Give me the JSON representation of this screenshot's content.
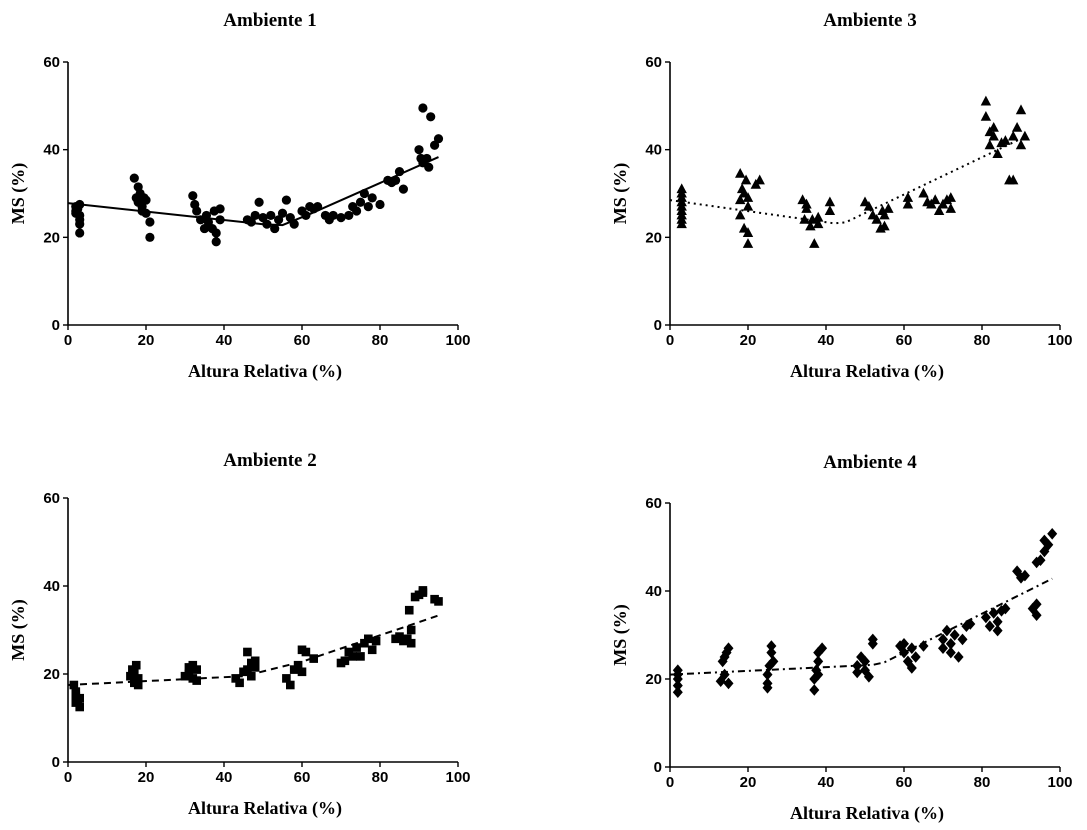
{
  "chart_data": [
    {
      "type": "scatter",
      "title": "Ambiente 1",
      "xlabel": "Altura Relativa (%)",
      "ylabel": "MS (%)",
      "xlim": [
        0,
        100
      ],
      "ylim": [
        0,
        60
      ],
      "xticks": [
        "0",
        "20",
        "40",
        "60",
        "80",
        "100"
      ],
      "yticks": [
        "0",
        "20",
        "40",
        "60"
      ],
      "marker": "circle",
      "line_style": "solid",
      "grid": false,
      "points": [
        [
          2,
          27
        ],
        [
          2,
          26
        ],
        [
          2,
          25.5
        ],
        [
          2.5,
          26.5
        ],
        [
          3,
          24
        ],
        [
          3,
          23
        ],
        [
          3,
          21
        ],
        [
          3,
          27.5
        ],
        [
          3,
          25
        ],
        [
          17,
          33.5
        ],
        [
          17.5,
          29
        ],
        [
          18,
          31.5
        ],
        [
          18,
          28
        ],
        [
          18.5,
          30
        ],
        [
          19,
          26
        ],
        [
          19,
          27
        ],
        [
          19.5,
          29
        ],
        [
          20,
          25.5
        ],
        [
          20,
          28.5
        ],
        [
          21,
          23.5
        ],
        [
          21,
          20
        ],
        [
          32,
          29.5
        ],
        [
          32.5,
          27.5
        ],
        [
          33,
          26
        ],
        [
          34,
          24
        ],
        [
          35,
          22
        ],
        [
          35.5,
          25
        ],
        [
          36,
          23.5
        ],
        [
          37,
          22
        ],
        [
          37.5,
          26
        ],
        [
          38,
          21
        ],
        [
          38,
          19
        ],
        [
          39,
          26.5
        ],
        [
          39,
          24
        ],
        [
          46,
          24
        ],
        [
          47,
          23.5
        ],
        [
          48,
          25
        ],
        [
          49,
          28
        ],
        [
          50,
          24.5
        ],
        [
          51,
          23
        ],
        [
          52,
          25
        ],
        [
          53,
          22
        ],
        [
          54,
          24
        ],
        [
          55,
          25.5
        ],
        [
          56,
          28.5
        ],
        [
          57,
          24.5
        ],
        [
          58,
          23
        ],
        [
          60,
          26
        ],
        [
          61,
          25
        ],
        [
          62,
          27
        ],
        [
          63,
          26.5
        ],
        [
          64,
          27
        ],
        [
          66,
          25
        ],
        [
          67,
          24
        ],
        [
          68,
          25
        ],
        [
          70,
          24.5
        ],
        [
          72,
          25
        ],
        [
          73,
          27
        ],
        [
          74,
          26
        ],
        [
          75,
          28
        ],
        [
          76,
          30
        ],
        [
          77,
          27
        ],
        [
          78,
          29
        ],
        [
          80,
          27.5
        ],
        [
          82,
          33
        ],
        [
          83,
          32.5
        ],
        [
          84,
          33
        ],
        [
          85,
          35
        ],
        [
          86,
          31
        ],
        [
          90,
          40
        ],
        [
          90.5,
          38
        ],
        [
          91,
          37
        ],
        [
          91,
          49.5
        ],
        [
          92,
          38
        ],
        [
          92.5,
          36
        ],
        [
          93,
          47.5
        ],
        [
          94,
          41
        ],
        [
          95,
          42.5
        ]
      ],
      "fit": [
        [
          0,
          27.8
        ],
        [
          50,
          23
        ],
        [
          55,
          22.8
        ],
        [
          62,
          25.3
        ],
        [
          95,
          38.3
        ]
      ]
    },
    {
      "type": "scatter",
      "title": "Ambiente 3",
      "xlabel": "Altura Relativa (%)",
      "ylabel": "MS (%)",
      "xlim": [
        0,
        100
      ],
      "ylim": [
        0,
        60
      ],
      "xticks": [
        "0",
        "20",
        "40",
        "60",
        "80",
        "100"
      ],
      "yticks": [
        "0",
        "20",
        "40",
        "60"
      ],
      "marker": "triangle",
      "line_style": "dotted",
      "grid": false,
      "points": [
        [
          3,
          23
        ],
        [
          3,
          24
        ],
        [
          3,
          25
        ],
        [
          3,
          26
        ],
        [
          3,
          27
        ],
        [
          3,
          28
        ],
        [
          3,
          29
        ],
        [
          3,
          30
        ],
        [
          3,
          31
        ],
        [
          18,
          34.5
        ],
        [
          18,
          25
        ],
        [
          18,
          28.5
        ],
        [
          18.5,
          31
        ],
        [
          19,
          22
        ],
        [
          19,
          30
        ],
        [
          19.5,
          33
        ],
        [
          20,
          21
        ],
        [
          20,
          18.5
        ],
        [
          20,
          27
        ],
        [
          20,
          29
        ],
        [
          22,
          32
        ],
        [
          23,
          33
        ],
        [
          34,
          28.5
        ],
        [
          34.5,
          24
        ],
        [
          35,
          26.5
        ],
        [
          35,
          27.5
        ],
        [
          36,
          22.5
        ],
        [
          36.5,
          24
        ],
        [
          37,
          18.5
        ],
        [
          38,
          23
        ],
        [
          38,
          24.5
        ],
        [
          41,
          28
        ],
        [
          41,
          26
        ],
        [
          50,
          28
        ],
        [
          51,
          27
        ],
        [
          52,
          25
        ],
        [
          53,
          24
        ],
        [
          54,
          22
        ],
        [
          54.5,
          26
        ],
        [
          55,
          25
        ],
        [
          55,
          22.5
        ],
        [
          56,
          26.5
        ],
        [
          61,
          29
        ],
        [
          61,
          27.5
        ],
        [
          65,
          30
        ],
        [
          66,
          28
        ],
        [
          67,
          27.5
        ],
        [
          68,
          28.5
        ],
        [
          69,
          26
        ],
        [
          70,
          27.5
        ],
        [
          71,
          28.5
        ],
        [
          72,
          26.5
        ],
        [
          72,
          29
        ],
        [
          81,
          51
        ],
        [
          81,
          47.5
        ],
        [
          82,
          44
        ],
        [
          82,
          41
        ],
        [
          83,
          43
        ],
        [
          83,
          45
        ],
        [
          84,
          39
        ],
        [
          85,
          41.5
        ],
        [
          86,
          42
        ],
        [
          87,
          33
        ],
        [
          88,
          43
        ],
        [
          88,
          33
        ],
        [
          89,
          45
        ],
        [
          90,
          49
        ],
        [
          90,
          41
        ],
        [
          91,
          43
        ]
      ],
      "fit": [
        [
          0,
          28.5
        ],
        [
          42,
          23.2
        ],
        [
          45,
          23.4
        ],
        [
          90,
          42.5
        ]
      ]
    },
    {
      "type": "scatter",
      "title": "Ambiente 2",
      "xlabel": "Altura Relativa (%)",
      "ylabel": "MS (%)",
      "xlim": [
        0,
        100
      ],
      "ylim": [
        0,
        60
      ],
      "xticks": [
        "0",
        "20",
        "40",
        "60",
        "80",
        "100"
      ],
      "yticks": [
        "0",
        "20",
        "40",
        "60"
      ],
      "marker": "square",
      "line_style": "dashed",
      "grid": false,
      "points": [
        [
          1.5,
          17.5
        ],
        [
          2,
          16
        ],
        [
          2,
          15
        ],
        [
          2,
          13.5
        ],
        [
          2.5,
          14
        ],
        [
          3,
          12.5
        ],
        [
          3,
          14.5
        ],
        [
          16,
          19.5
        ],
        [
          16.5,
          21
        ],
        [
          17,
          18
        ],
        [
          17,
          20.5
        ],
        [
          17.5,
          22
        ],
        [
          18,
          17.5
        ],
        [
          18,
          19
        ],
        [
          30,
          19.5
        ],
        [
          31,
          21.5
        ],
        [
          31,
          20
        ],
        [
          32,
          22
        ],
        [
          32,
          19
        ],
        [
          33,
          21
        ],
        [
          33,
          18.5
        ],
        [
          43,
          19
        ],
        [
          44,
          18
        ],
        [
          45,
          20.5
        ],
        [
          46,
          21
        ],
        [
          46,
          25
        ],
        [
          47,
          22.5
        ],
        [
          47,
          19.5
        ],
        [
          48,
          21.5
        ],
        [
          48,
          23
        ],
        [
          56,
          19
        ],
        [
          57,
          17.5
        ],
        [
          58,
          21
        ],
        [
          59,
          22
        ],
        [
          60,
          20.5
        ],
        [
          60,
          25.5
        ],
        [
          61,
          25
        ],
        [
          63,
          23.5
        ],
        [
          70,
          22.5
        ],
        [
          71,
          23
        ],
        [
          72,
          25
        ],
        [
          73,
          24
        ],
        [
          74,
          26
        ],
        [
          75,
          24
        ],
        [
          76,
          27
        ],
        [
          77,
          28
        ],
        [
          78,
          25.5
        ],
        [
          79,
          27.5
        ],
        [
          84,
          28
        ],
        [
          85,
          28.5
        ],
        [
          86,
          27.5
        ],
        [
          87,
          28
        ],
        [
          87.5,
          34.5
        ],
        [
          88,
          27
        ],
        [
          88,
          30
        ],
        [
          89,
          37.5
        ],
        [
          90,
          38
        ],
        [
          91,
          39
        ],
        [
          91,
          38.5
        ],
        [
          94,
          37
        ],
        [
          95,
          36.5
        ]
      ],
      "fit": [
        [
          0,
          17.5
        ],
        [
          45,
          19.5
        ],
        [
          60,
          22.8
        ],
        [
          95,
          33.3
        ]
      ]
    },
    {
      "type": "scatter",
      "title": "Ambiente 4",
      "xlabel": "Altura Relativa (%)",
      "ylabel": "MS (%)",
      "xlim": [
        0,
        100
      ],
      "ylim": [
        0,
        60
      ],
      "xticks": [
        "0",
        "20",
        "40",
        "60",
        "80",
        "100"
      ],
      "yticks": [
        "0",
        "20",
        "40",
        "60"
      ],
      "marker": "diamond",
      "line_style": "dashdot",
      "grid": false,
      "points": [
        [
          2,
          17
        ],
        [
          2,
          18.5
        ],
        [
          2,
          20
        ],
        [
          2,
          21
        ],
        [
          2,
          22
        ],
        [
          13,
          19.5
        ],
        [
          13.5,
          24
        ],
        [
          14,
          25
        ],
        [
          14,
          21
        ],
        [
          14.5,
          26
        ],
        [
          15,
          27
        ],
        [
          15,
          19
        ],
        [
          25,
          18
        ],
        [
          25,
          19
        ],
        [
          25,
          21
        ],
        [
          25.5,
          23
        ],
        [
          26,
          26
        ],
        [
          26,
          27.5
        ],
        [
          26.5,
          24
        ],
        [
          37,
          17.5
        ],
        [
          37,
          20
        ],
        [
          37.5,
          22
        ],
        [
          38,
          24
        ],
        [
          38,
          26
        ],
        [
          38,
          21
        ],
        [
          39,
          27
        ],
        [
          48,
          21.5
        ],
        [
          48,
          23
        ],
        [
          49,
          25
        ],
        [
          50,
          22
        ],
        [
          50,
          24
        ],
        [
          51,
          20.5
        ],
        [
          52,
          28
        ],
        [
          52,
          29
        ],
        [
          59,
          27.5
        ],
        [
          60,
          26
        ],
        [
          60,
          28
        ],
        [
          61,
          24
        ],
        [
          62,
          27
        ],
        [
          62,
          22.5
        ],
        [
          63,
          25
        ],
        [
          65,
          27.5
        ],
        [
          70,
          27
        ],
        [
          70,
          29
        ],
        [
          71,
          31
        ],
        [
          72,
          26
        ],
        [
          72,
          28
        ],
        [
          73,
          30
        ],
        [
          74,
          25
        ],
        [
          75,
          29
        ],
        [
          76,
          32
        ],
        [
          77,
          32.5
        ],
        [
          81,
          34
        ],
        [
          82,
          32
        ],
        [
          83,
          35
        ],
        [
          84,
          33
        ],
        [
          84,
          31
        ],
        [
          85,
          35.5
        ],
        [
          86,
          36
        ],
        [
          89,
          44.5
        ],
        [
          90,
          43
        ],
        [
          91,
          43.5
        ],
        [
          93,
          36
        ],
        [
          94,
          34.5
        ],
        [
          94,
          37
        ],
        [
          94,
          46.5
        ],
        [
          95,
          47
        ],
        [
          96,
          49
        ],
        [
          96,
          51.5
        ],
        [
          97,
          50.5
        ],
        [
          98,
          53
        ]
      ],
      "fit": [
        [
          0,
          21
        ],
        [
          52,
          23.2
        ],
        [
          55,
          23.8
        ],
        [
          98,
          42.8
        ]
      ]
    }
  ]
}
